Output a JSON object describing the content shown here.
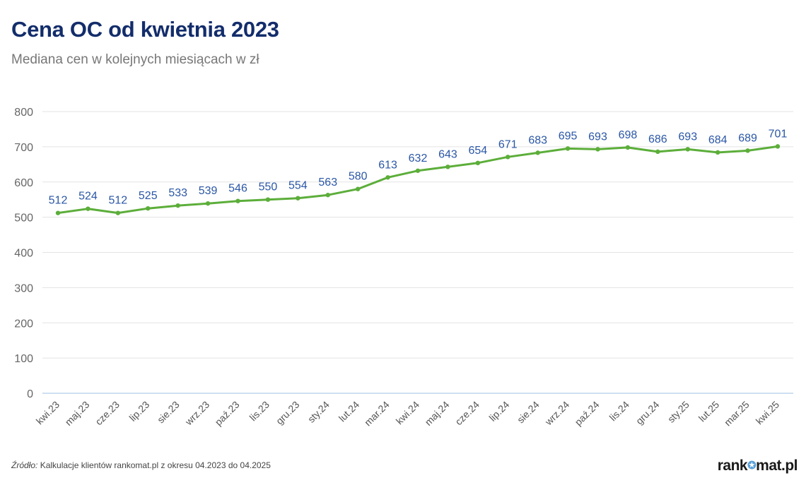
{
  "header": {
    "title": "Cena OC od kwietnia 2023",
    "subtitle": "Mediana cen w kolejnych miesiącach w zł"
  },
  "footer": {
    "source_label": "Źródło:",
    "source_text": " Kalkulacje klientów rankomat.pl z okresu 04.2023 do 04.2025",
    "logo_left": "rank",
    "logo_right": "mat.pl",
    "logo_icon": "star-icon"
  },
  "colors": {
    "line": "#5cae3a",
    "label": "#2a56a6",
    "title": "#132d6b",
    "grid": "#e3e3e3",
    "axis": "#9cc0e3"
  },
  "chart_data": {
    "type": "line",
    "title": "Cena OC od kwietnia 2023",
    "subtitle": "Mediana cen w kolejnych miesiącach w zł",
    "categories": [
      "kwi.23",
      "maj.23",
      "cze.23",
      "lip.23",
      "sie.23",
      "wrz.23",
      "paź.23",
      "lis.23",
      "gru.23",
      "sty.24",
      "lut.24",
      "mar.24",
      "kwi.24",
      "maj.24",
      "cze.24",
      "lip.24",
      "sie.24",
      "wrz.24",
      "paź.24",
      "lis.24",
      "gru.24",
      "sty.25",
      "lut.25",
      "mar.25",
      "kwi.25"
    ],
    "values": [
      512,
      524,
      512,
      525,
      533,
      539,
      546,
      550,
      554,
      563,
      580,
      613,
      632,
      643,
      654,
      671,
      683,
      695,
      693,
      698,
      686,
      693,
      684,
      689,
      701
    ],
    "ylim": [
      0,
      800
    ],
    "yticks": [
      0,
      100,
      200,
      300,
      400,
      500,
      600,
      700,
      800
    ],
    "grid": true,
    "data_labels": true
  }
}
